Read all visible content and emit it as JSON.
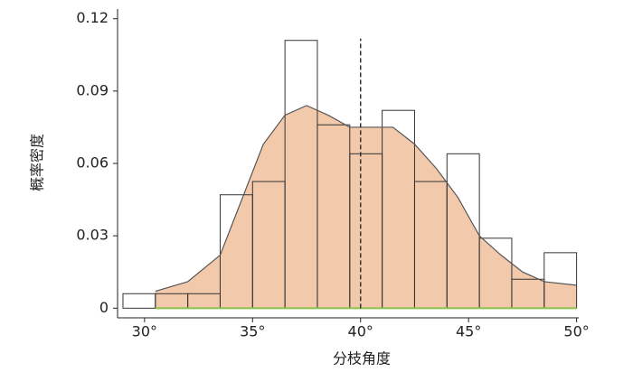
{
  "chart_data": {
    "type": "histogram",
    "xlabel": "分枝角度",
    "ylabel": "概率密度",
    "bins": [
      29,
      30.5,
      32,
      33.5,
      35,
      36.5,
      38,
      39.5,
      41,
      42.5,
      44,
      45.5,
      47,
      48.5,
      50
    ],
    "values": [
      0.006,
      0.006,
      0.006,
      0.047,
      0.0525,
      0.111,
      0.076,
      0.064,
      0.082,
      0.0525,
      0.064,
      0.029,
      0.012,
      0.023
    ],
    "bar_edge_color": "#333333",
    "kde": {
      "x": [
        30.5,
        32,
        33.5,
        34.5,
        35.5,
        36.5,
        37.5,
        38.5,
        39.5,
        40.5,
        41.5,
        42.5,
        43.5,
        44.5,
        45.5,
        46.5,
        47.5,
        48.5,
        50
      ],
      "y": [
        0.007,
        0.011,
        0.022,
        0.045,
        0.068,
        0.08,
        0.084,
        0.08,
        0.075,
        0.075,
        0.075,
        0.068,
        0.058,
        0.046,
        0.03,
        0.022,
        0.015,
        0.011,
        0.0095
      ],
      "color": "#f3c9ab",
      "line_color": "#555555"
    },
    "vline": 40,
    "vline_color": "#333333",
    "baseline_color": "#8bc34a",
    "xlim": [
      28.75,
      50.1
    ],
    "ylim": [
      -0.004,
      0.124
    ],
    "xticks": [
      {
        "value": 30,
        "label": "30°"
      },
      {
        "value": 35,
        "label": "35°"
      },
      {
        "value": 40,
        "label": "40°"
      },
      {
        "value": 45,
        "label": "45°"
      },
      {
        "value": 50,
        "label": "50°"
      }
    ],
    "yticks": [
      0,
      0.03,
      0.06,
      0.09,
      0.12
    ]
  }
}
